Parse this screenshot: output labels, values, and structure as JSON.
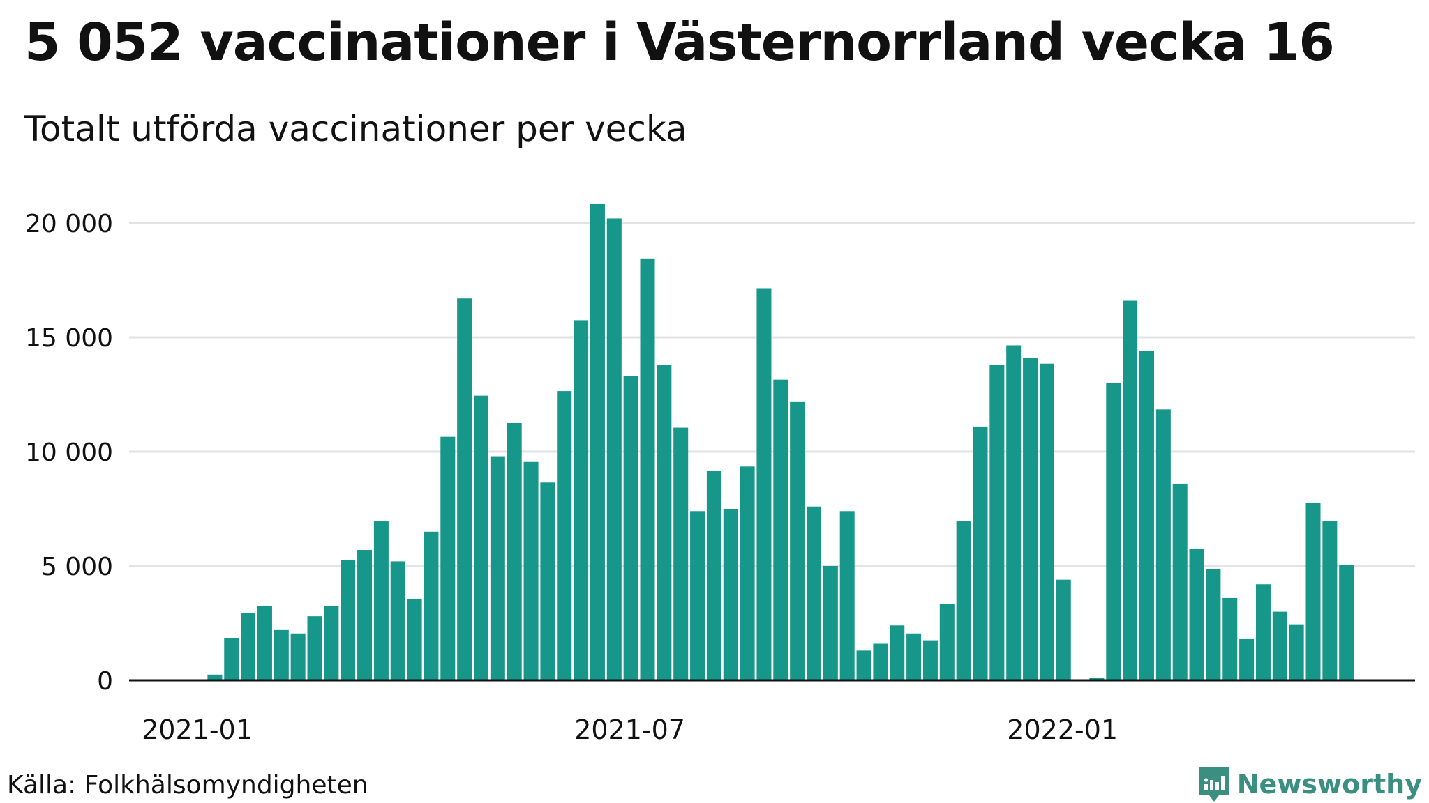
{
  "title": "5 052 vaccinationer i Västernorrland vecka 16",
  "subtitle": "Totalt utförda vaccinationer per vecka",
  "source": "Källa: Folkhälsomyndigheten",
  "brand": "Newsworthy",
  "colors": {
    "bar": "#17968a",
    "grid": "#e3e3e3",
    "axis": "#111111",
    "brand": "#3b8f80"
  },
  "chart_data": {
    "type": "bar",
    "title": "5 052 vaccinationer i Västernorrland vecka 16",
    "subtitle": "Totalt utförda vaccinationer per vecka",
    "xlabel": "",
    "ylabel": "",
    "ylim": [
      0,
      20000
    ],
    "yticks": [
      0,
      5000,
      10000,
      15000,
      20000
    ],
    "ytick_labels": [
      "0",
      "5 000",
      "10 000",
      "15 000",
      "20 000"
    ],
    "xtick_labels": [
      {
        "label": "2021-01",
        "at_week": 0
      },
      {
        "label": "2021-07",
        "at_week": 26
      },
      {
        "label": "2022-01",
        "at_week": 52
      }
    ],
    "grid": true,
    "weeks": 73,
    "values": [
      0,
      0,
      0,
      0,
      250,
      1850,
      2950,
      3250,
      2200,
      2050,
      2800,
      3250,
      5250,
      5700,
      6950,
      5200,
      3550,
      6500,
      10650,
      16700,
      12450,
      9800,
      11250,
      9550,
      8650,
      12650,
      15750,
      20850,
      20200,
      13300,
      18450,
      13800,
      11050,
      7400,
      9150,
      7500,
      9350,
      17150,
      13150,
      12200,
      7600,
      5000,
      7400,
      1300,
      1600,
      2400,
      2050,
      1750,
      3350,
      6950,
      11100,
      13800,
      14650,
      14100,
      13850,
      4400,
      0,
      100,
      13000,
      16600,
      14400,
      11850,
      8600,
      5750,
      4850,
      3600,
      1800,
      4200,
      3000,
      2450,
      7750,
      6950,
      5050
    ]
  }
}
